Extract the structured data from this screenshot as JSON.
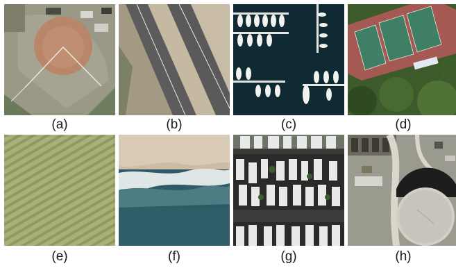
{
  "panels": [
    {
      "label": "(a)",
      "subject": "baseball diamond"
    },
    {
      "label": "(b)",
      "subject": "highway"
    },
    {
      "label": "(c)",
      "subject": "marina with boats"
    },
    {
      "label": "(d)",
      "subject": "tennis courts"
    },
    {
      "label": "(e)",
      "subject": "agricultural field"
    },
    {
      "label": "(f)",
      "subject": "beach and surf"
    },
    {
      "label": "(g)",
      "subject": "mobile home park"
    },
    {
      "label": "(h)",
      "subject": "storage tank"
    }
  ]
}
